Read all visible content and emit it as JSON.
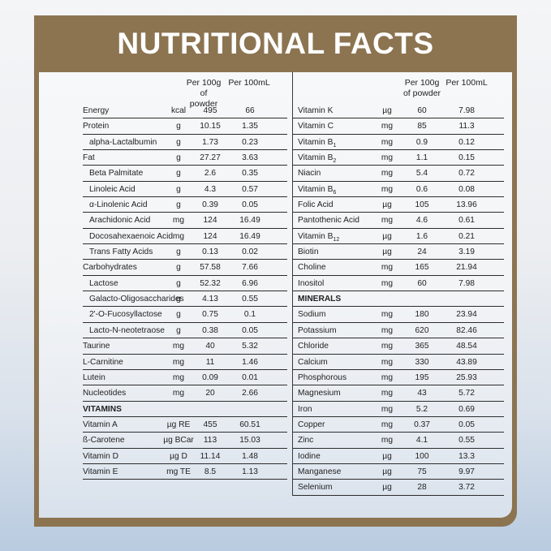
{
  "title": "NUTRITIONAL FACTS",
  "header": {
    "per100g_l1": "Per 100g",
    "per100g_l2": "of powder",
    "per100ml": "Per 100mL"
  },
  "left": [
    {
      "name": "Energy",
      "unit": "kcal",
      "v1": "495",
      "v2": "66",
      "indent": false
    },
    {
      "name": "Protein",
      "unit": "g",
      "v1": "10.15",
      "v2": "1.35",
      "indent": false
    },
    {
      "name": "alpha-Lactalbumin",
      "unit": "g",
      "v1": "1.73",
      "v2": "0.23",
      "indent": true
    },
    {
      "name": "Fat",
      "unit": "g",
      "v1": "27.27",
      "v2": "3.63",
      "indent": false
    },
    {
      "name": "Beta Palmitate",
      "unit": "g",
      "v1": "2.6",
      "v2": "0.35",
      "indent": true
    },
    {
      "name": "Linoleic Acid",
      "unit": "g",
      "v1": "4.3",
      "v2": "0.57",
      "indent": true
    },
    {
      "name": "α-Linolenic Acid",
      "unit": "g",
      "v1": "0.39",
      "v2": "0.05",
      "indent": true
    },
    {
      "name": "Arachidonic Acid",
      "unit": "mg",
      "v1": "124",
      "v2": "16.49",
      "indent": true
    },
    {
      "name": "Docosahexaenoic Acid",
      "unit": "mg",
      "v1": "124",
      "v2": "16.49",
      "indent": true
    },
    {
      "name": "Trans Fatty Acids",
      "unit": "g",
      "v1": "0.13",
      "v2": "0.02",
      "indent": true
    },
    {
      "name": "Carbohydrates",
      "unit": "g",
      "v1": "57.58",
      "v2": "7.66",
      "indent": false
    },
    {
      "name": "Lactose",
      "unit": "g",
      "v1": "52.32",
      "v2": "6.96",
      "indent": true
    },
    {
      "name": "Galacto-Oligosaccharides",
      "unit": "g",
      "v1": "4.13",
      "v2": "0.55",
      "indent": true
    },
    {
      "name": "2'-O-Fucosyllactose",
      "unit": "g",
      "v1": "0.75",
      "v2": "0.1",
      "indent": true
    },
    {
      "name": "Lacto-N-neotetraose",
      "unit": "g",
      "v1": "0.38",
      "v2": "0.05",
      "indent": true
    },
    {
      "name": "Taurine",
      "unit": "mg",
      "v1": "40",
      "v2": "5.32",
      "indent": false
    },
    {
      "name": "L-Carnitine",
      "unit": "mg",
      "v1": "11",
      "v2": "1.46",
      "indent": false
    },
    {
      "name": "Lutein",
      "unit": "mg",
      "v1": "0.09",
      "v2": "0.01",
      "indent": false
    },
    {
      "name": "Nucleotides",
      "unit": "mg",
      "v1": "20",
      "v2": "2.66",
      "indent": false
    },
    {
      "section": "VITAMINS"
    },
    {
      "name": "Vitamin A",
      "unit": "µg RE",
      "v1": "455",
      "v2": "60.51",
      "indent": false
    },
    {
      "name": "ß-Carotene",
      "unit": "µg BCar",
      "v1": "113",
      "v2": "15.03",
      "indent": false
    },
    {
      "name": "Vitamin D",
      "unit": "µg D",
      "v1": "11.14",
      "v2": "1.48",
      "indent": false
    },
    {
      "name": "Vitamin E",
      "unit": "mg TE",
      "v1": "8.5",
      "v2": "1.13",
      "indent": false
    }
  ],
  "right": [
    {
      "name": "Vitamin K",
      "unit": "µg",
      "v1": "60",
      "v2": "7.98"
    },
    {
      "name": "Vitamin C",
      "unit": "mg",
      "v1": "85",
      "v2": "11.3"
    },
    {
      "name": "Vitamin B",
      "sub": "1",
      "unit": "mg",
      "v1": "0.9",
      "v2": "0.12"
    },
    {
      "name": "Vitamin B",
      "sub": "2",
      "unit": "mg",
      "v1": "1.1",
      "v2": "0.15"
    },
    {
      "name": "Niacin",
      "unit": "mg",
      "v1": "5.4",
      "v2": "0.72"
    },
    {
      "name": "Vitamin B",
      "sub": "6",
      "unit": "mg",
      "v1": "0.6",
      "v2": "0.08"
    },
    {
      "name": "Folic Acid",
      "unit": "µg",
      "v1": "105",
      "v2": "13.96"
    },
    {
      "name": "Pantothenic Acid",
      "unit": "mg",
      "v1": "4.6",
      "v2": "0.61"
    },
    {
      "name": "Vitamin B",
      "sub": "12",
      "unit": "µg",
      "v1": "1.6",
      "v2": "0.21"
    },
    {
      "name": "Biotin",
      "unit": "µg",
      "v1": "24",
      "v2": "3.19"
    },
    {
      "name": "Choline",
      "unit": "mg",
      "v1": "165",
      "v2": "21.94"
    },
    {
      "name": "Inositol",
      "unit": "mg",
      "v1": "60",
      "v2": "7.98"
    },
    {
      "section": "MINERALS"
    },
    {
      "name": "Sodium",
      "unit": "mg",
      "v1": "180",
      "v2": "23.94"
    },
    {
      "name": "Potassium",
      "unit": "mg",
      "v1": "620",
      "v2": "82.46"
    },
    {
      "name": "Chloride",
      "unit": "mg",
      "v1": "365",
      "v2": "48.54"
    },
    {
      "name": "Calcium",
      "unit": "mg",
      "v1": "330",
      "v2": "43.89"
    },
    {
      "name": "Phosphorous",
      "unit": "mg",
      "v1": "195",
      "v2": "25.93"
    },
    {
      "name": "Magnesium",
      "unit": "mg",
      "v1": "43",
      "v2": "5.72"
    },
    {
      "name": "Iron",
      "unit": "mg",
      "v1": "5.2",
      "v2": "0.69"
    },
    {
      "name": "Copper",
      "unit": "mg",
      "v1": "0.37",
      "v2": "0.05"
    },
    {
      "name": "Zinc",
      "unit": "mg",
      "v1": "4.1",
      "v2": "0.55"
    },
    {
      "name": "Iodine",
      "unit": "µg",
      "v1": "100",
      "v2": "13.3"
    },
    {
      "name": "Manganese",
      "unit": "µg",
      "v1": "75",
      "v2": "9.97"
    },
    {
      "name": "Selenium",
      "unit": "µg",
      "v1": "28",
      "v2": "3.72"
    }
  ]
}
